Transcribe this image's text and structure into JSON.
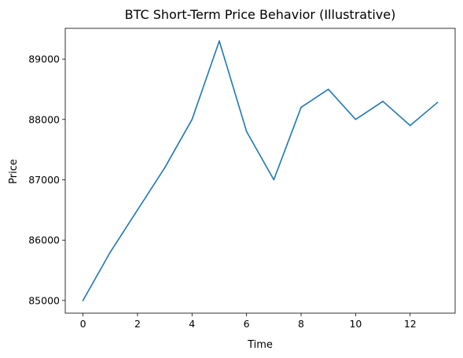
{
  "chart_data": {
    "type": "line",
    "title": "BTC Short-Term Price Behavior (Illustrative)",
    "xlabel": "Time",
    "ylabel": "Price",
    "xlim": [
      -0.65,
      13.65
    ],
    "ylim": [
      84790,
      89510
    ],
    "xticks": [
      0,
      2,
      4,
      6,
      8,
      10,
      12
    ],
    "yticks": [
      85000,
      86000,
      87000,
      88000,
      89000
    ],
    "grid": false,
    "series": [
      {
        "color": "#1f77b4",
        "x": [
          0,
          1,
          2,
          3,
          4,
          5,
          6,
          7,
          8,
          9,
          10,
          11,
          12,
          13
        ],
        "y": [
          85000,
          85800,
          86500,
          87200,
          88000,
          89300,
          87800,
          87000,
          88200,
          88500,
          88000,
          88300,
          87900,
          88280
        ]
      }
    ]
  }
}
